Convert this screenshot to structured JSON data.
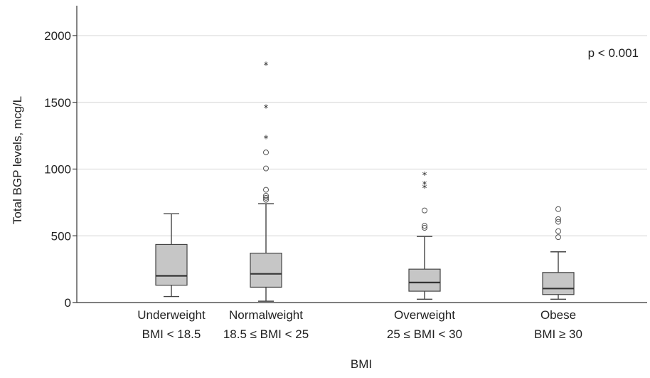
{
  "chart_data": {
    "type": "boxplot",
    "ylabel": "Total BGP levels, mcg/L",
    "xlabel": "BMI",
    "ylim": [
      0,
      2000
    ],
    "yticks": [
      0,
      500,
      1000,
      1500,
      2000
    ],
    "grid": "horizontal",
    "annotation": "p < 0.001",
    "colors": {
      "box_fill": "#c6c6c6",
      "box_stroke": "#444444"
    },
    "categories": [
      {
        "label_line1": "Underweight",
        "label_line2": "BMI < 18.5",
        "whisker_low": 45,
        "q1": 130,
        "median": 200,
        "q3": 435,
        "whisker_high": 665,
        "outliers_circle": [],
        "outliers_star": []
      },
      {
        "label_line1": "Normalweight",
        "label_line2": "18.5 ≤ BMI < 25",
        "whisker_low": 10,
        "q1": 115,
        "median": 215,
        "q3": 370,
        "whisker_high": 740,
        "outliers_circle": [
          770,
          785,
          800,
          845,
          1005,
          1125
        ],
        "outliers_star": [
          1230,
          1460,
          1780
        ]
      },
      {
        "label_line1": "Overweight",
        "label_line2": "25 ≤ BMI < 30",
        "whisker_low": 25,
        "q1": 85,
        "median": 150,
        "q3": 250,
        "whisker_high": 495,
        "outliers_circle": [
          560,
          575,
          690
        ],
        "outliers_star": [
          860,
          885,
          955
        ]
      },
      {
        "label_line1": "Obese",
        "label_line2": "BMI ≥ 30",
        "whisker_low": 25,
        "q1": 60,
        "median": 105,
        "q3": 225,
        "whisker_high": 380,
        "outliers_circle": [
          490,
          535,
          605,
          625,
          700
        ],
        "outliers_star": []
      }
    ]
  }
}
